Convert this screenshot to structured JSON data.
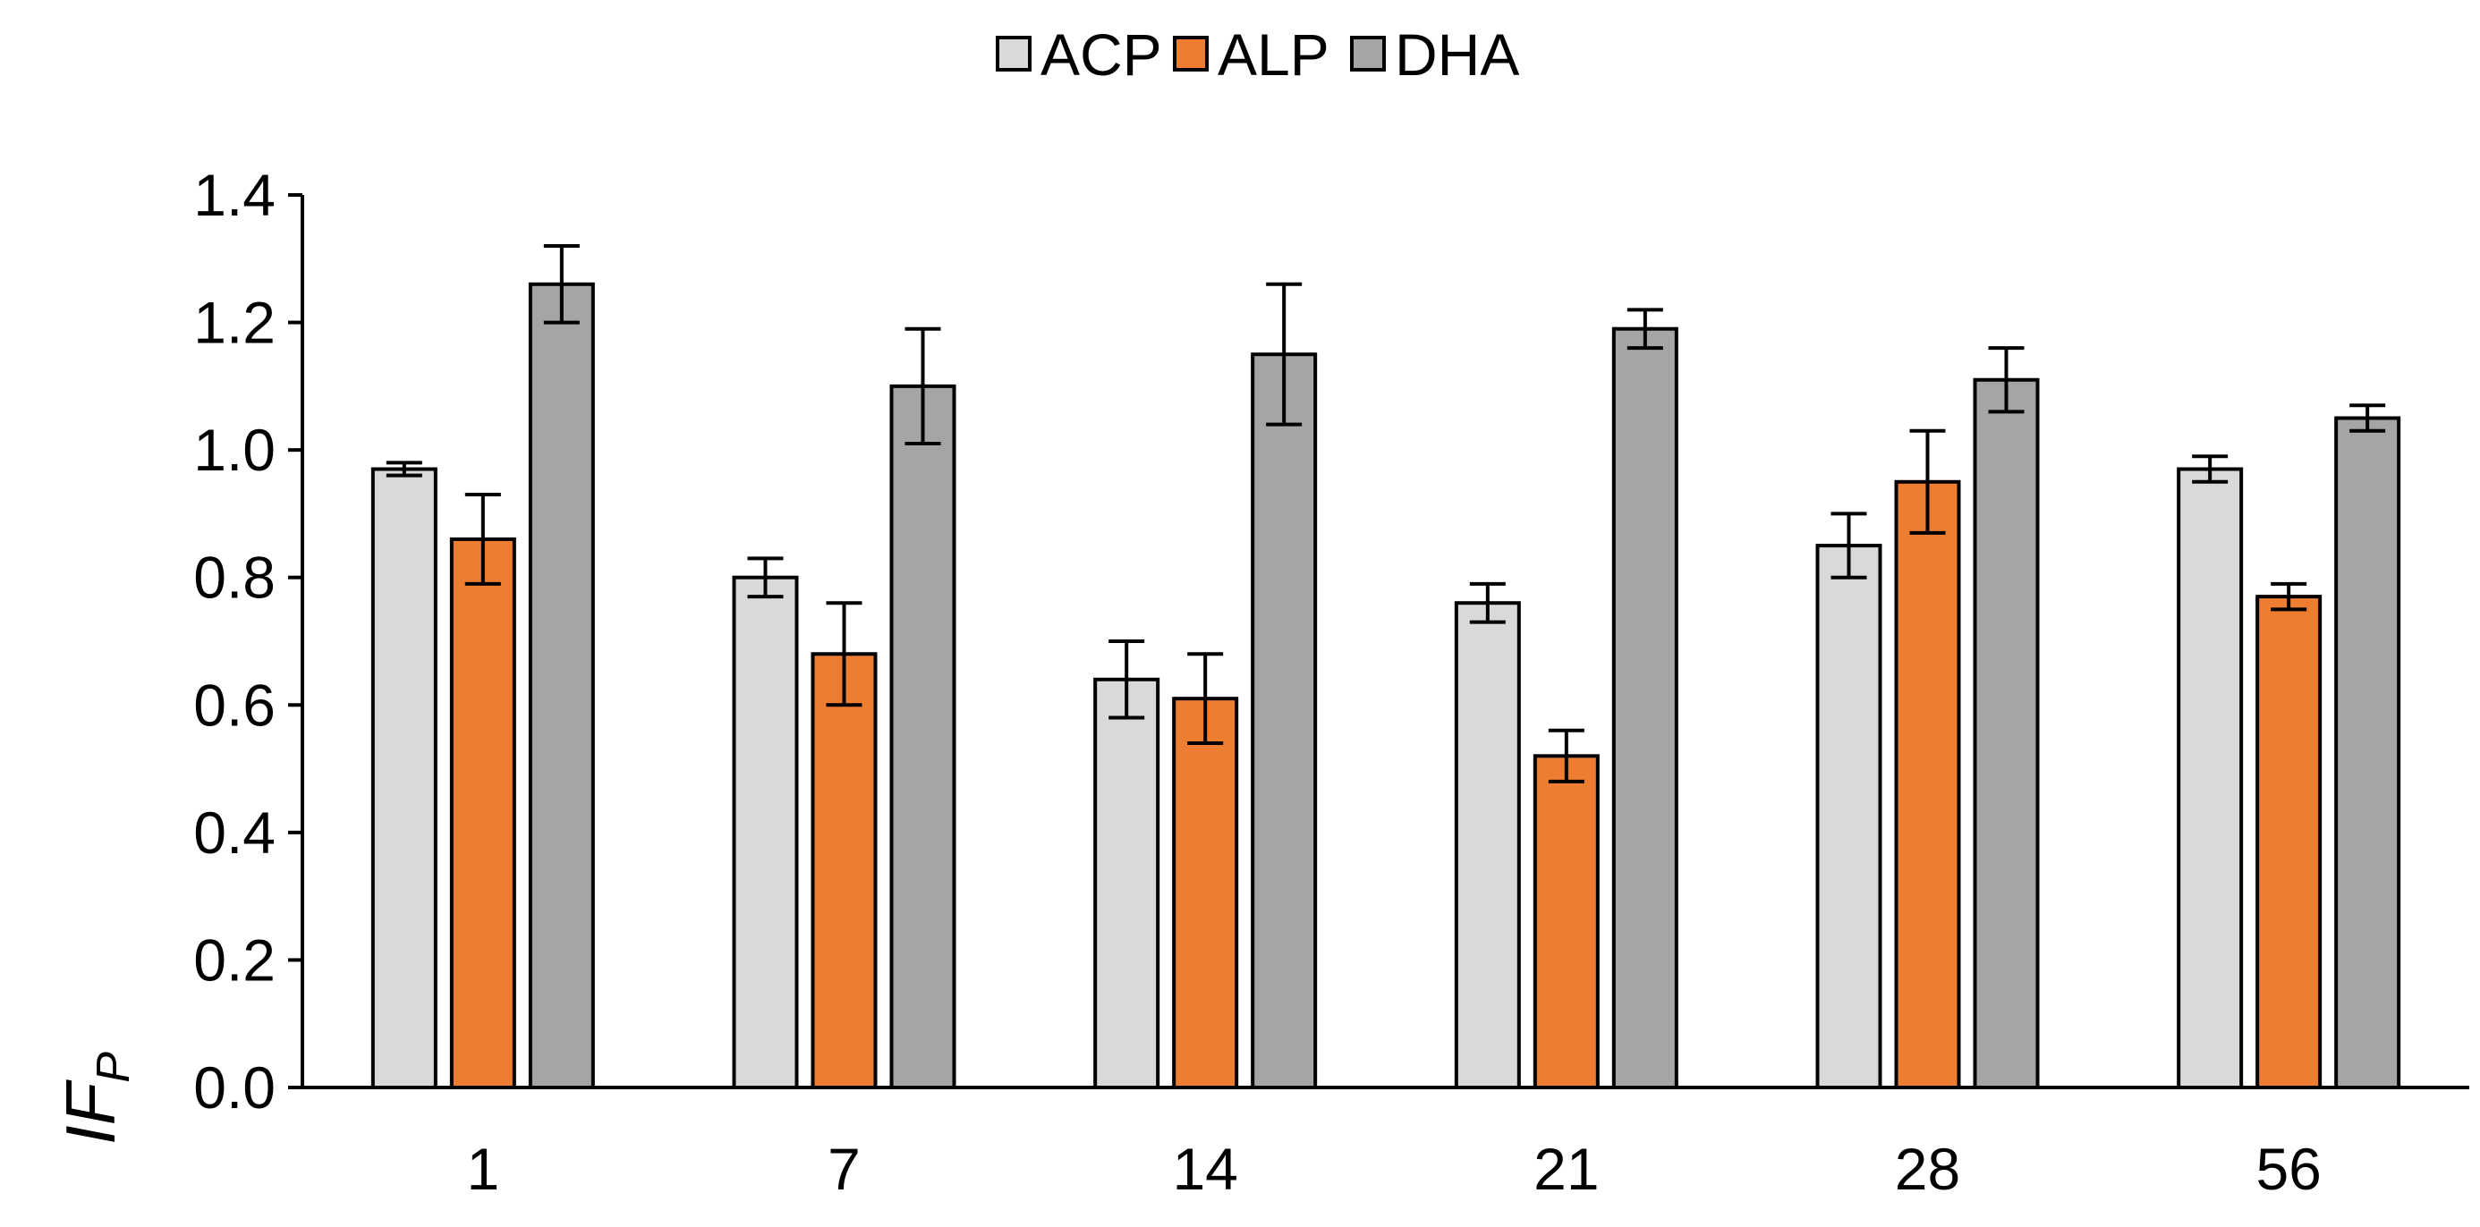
{
  "chart_data": {
    "type": "bar",
    "title": "",
    "xlabel": "",
    "ylabel": {
      "main": "IF",
      "subscript": "P"
    },
    "ylim": [
      0,
      1.4
    ],
    "ytick_labels": [
      "0.0",
      "0.2",
      "0.4",
      "0.6",
      "0.8",
      "1.0",
      "1.2",
      "1.4"
    ],
    "grid": false,
    "legend_position": "top-center",
    "categories": [
      "1",
      "7",
      "14",
      "21",
      "28",
      "56"
    ],
    "series": [
      {
        "name": "ACP",
        "color": "#d9d9d9",
        "values": [
          0.97,
          0.8,
          0.64,
          0.76,
          0.85,
          0.97
        ],
        "errors": [
          0.01,
          0.03,
          0.06,
          0.03,
          0.05,
          0.02
        ]
      },
      {
        "name": "ALP",
        "color": "#ed7d31",
        "values": [
          0.86,
          0.68,
          0.61,
          0.52,
          0.95,
          0.77
        ],
        "errors": [
          0.07,
          0.08,
          0.07,
          0.04,
          0.08,
          0.02
        ]
      },
      {
        "name": "DHA",
        "color": "#a5a5a5",
        "values": [
          1.26,
          1.1,
          1.15,
          1.19,
          1.11,
          1.05
        ],
        "errors": [
          0.06,
          0.09,
          0.11,
          0.03,
          0.05,
          0.02
        ]
      }
    ]
  }
}
